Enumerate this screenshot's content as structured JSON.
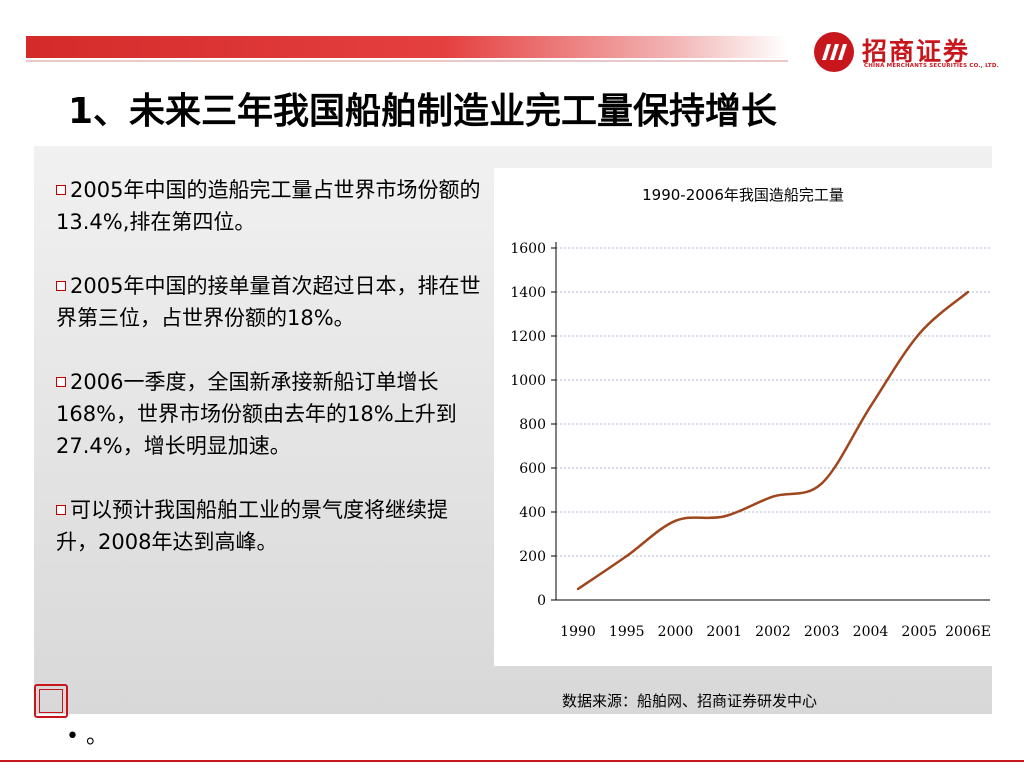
{
  "header": {
    "logo_text": "招商证券",
    "logo_en": "CHINA MERCHANTS SECURITIES CO., LTD."
  },
  "slide_title": "1、未来三年我国船舶制造业完工量保持增长",
  "bullets": [
    "2005年中国的造船完工量占世界市场份额的13.4%,排在第四位。",
    "2005年中国的接单量首次超过日本，排在世界第三位，占世界份额的18%。",
    "2006一季度，全国新承接新船订单增长168%，世界市场份额由去年的18%上升到27.4%，增长明显加速。",
    "可以预计我国船舶工业的景气度将继续提升，2008年达到高峰。"
  ],
  "footer": {
    "bullet_text": "• 。",
    "source": "数据来源：船舶网、招商证券研发中心"
  },
  "colors": {
    "accent": "#c8161d",
    "line": "#a0461e"
  },
  "chart_data": {
    "type": "line",
    "title": "1990-2006年我国造船完工量",
    "xlabel": "",
    "ylabel": "",
    "categories": [
      "1990",
      "1995",
      "2000",
      "2001",
      "2002",
      "2003",
      "2004",
      "2005",
      "2006E"
    ],
    "series": [
      {
        "values": [
          50,
          200,
          360,
          380,
          470,
          530,
          880,
          1210,
          1400
        ]
      }
    ],
    "ylim": [
      0,
      1600
    ],
    "yticks": [
      0,
      200,
      400,
      600,
      800,
      1000,
      1200,
      1400,
      1600
    ],
    "grid": true,
    "legend": "none"
  }
}
